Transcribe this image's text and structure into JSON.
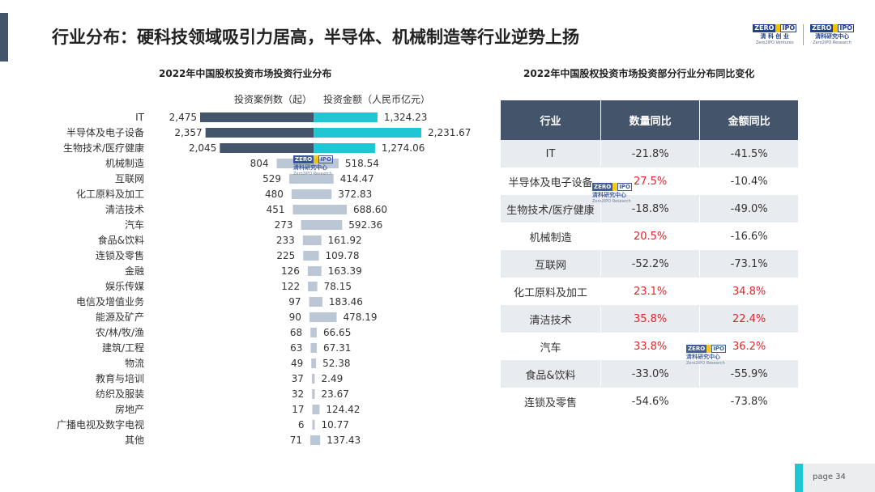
{
  "title": "行业分布：硬科技领域吸引力居高，半导体、机械制造等行业逆势上扬",
  "logos": [
    {
      "name": "zero2ipo-ventures-logo",
      "mark_left": "ZERO",
      "mark_right": "IPO",
      "cn": "清 科 创 业",
      "en": "Zero2IPO Ventures"
    },
    {
      "name": "zero2ipo-research-logo",
      "mark_left": "ZERO",
      "mark_right": "IPO",
      "cn": "清科研究中心",
      "en": "Zero2IPO Research"
    }
  ],
  "watermark": {
    "mark_left": "ZERO",
    "mark_right": "IPO",
    "cn": "清科研究中心",
    "en": "Zero2IPO Research"
  },
  "colors": {
    "deals_bar": "#44546a",
    "amount_bar": "#1fc7d4",
    "muted_bar": "#bcc7d6",
    "positive": "#e0262b"
  },
  "chart_data": [
    {
      "type": "bar",
      "title": "2022年中国股权投资市场投资行业分布",
      "legend": [
        "投资案例数（起）",
        "投资金额（人民币亿元）"
      ],
      "categories": [
        "IT",
        "半导体及电子设备",
        "生物技术/医疗健康",
        "机械制造",
        "互联网",
        "化工原料及加工",
        "清洁技术",
        "汽车",
        "食品&饮料",
        "连锁及零售",
        "金融",
        "娱乐传媒",
        "电信及增值业务",
        "能源及矿产",
        "农/林/牧/渔",
        "建筑/工程",
        "物流",
        "教育与培训",
        "纺织及服装",
        "房地产",
        "广播电视及数字电视",
        "其他"
      ],
      "series": [
        {
          "name": "投资案例数（起）",
          "values": [
            2475,
            2357,
            2045,
            804,
            529,
            480,
            451,
            273,
            233,
            225,
            126,
            122,
            97,
            90,
            68,
            63,
            49,
            37,
            32,
            17,
            6,
            71
          ]
        },
        {
          "name": "投资金额（人民币亿元）",
          "values": [
            1324.23,
            2231.67,
            1274.06,
            518.54,
            414.47,
            372.83,
            688.6,
            592.36,
            161.92,
            109.78,
            163.39,
            78.15,
            183.46,
            478.19,
            66.65,
            67.31,
            52.38,
            2.49,
            23.67,
            124.42,
            10.77,
            137.43
          ]
        }
      ],
      "labels_left": [
        "2,475",
        "2,357",
        "2,045",
        "804",
        "529",
        "480",
        "451",
        "273",
        "233",
        "225",
        "126",
        "122",
        "97",
        "90",
        "68",
        "63",
        "49",
        "37",
        "32",
        "17",
        "6",
        "71"
      ],
      "labels_right": [
        "1,324.23",
        "2,231.67",
        "1,274.06",
        "518.54",
        "414.47",
        "372.83",
        "688.60",
        "592.36",
        "161.92",
        "109.78",
        "163.39",
        "78.15",
        "183.46",
        "478.19",
        "66.65",
        "67.31",
        "52.38",
        "2.49",
        "23.67",
        "124.42",
        "10.77",
        "137.43"
      ],
      "highlighted_count": 3
    },
    {
      "type": "table",
      "title": "2022年中国股权投资市场投资部分行业分布同比变化",
      "columns": [
        "行业",
        "数量同比",
        "金额同比"
      ],
      "rows": [
        [
          "IT",
          "-21.8%",
          "-41.5%"
        ],
        [
          "半导体及电子设备",
          "27.5%",
          "-10.4%"
        ],
        [
          "生物技术/医疗健康",
          "-18.8%",
          "-49.0%"
        ],
        [
          "机械制造",
          "20.5%",
          "-16.6%"
        ],
        [
          "互联网",
          "-52.2%",
          "-73.1%"
        ],
        [
          "化工原料及加工",
          "23.1%",
          "34.8%"
        ],
        [
          "清洁技术",
          "35.8%",
          "22.4%"
        ],
        [
          "汽车",
          "33.8%",
          "36.2%"
        ],
        [
          "食品&饮料",
          "-33.0%",
          "-55.9%"
        ],
        [
          "连锁及零售",
          "-54.6%",
          "-73.8%"
        ]
      ]
    }
  ],
  "page": "page  34"
}
